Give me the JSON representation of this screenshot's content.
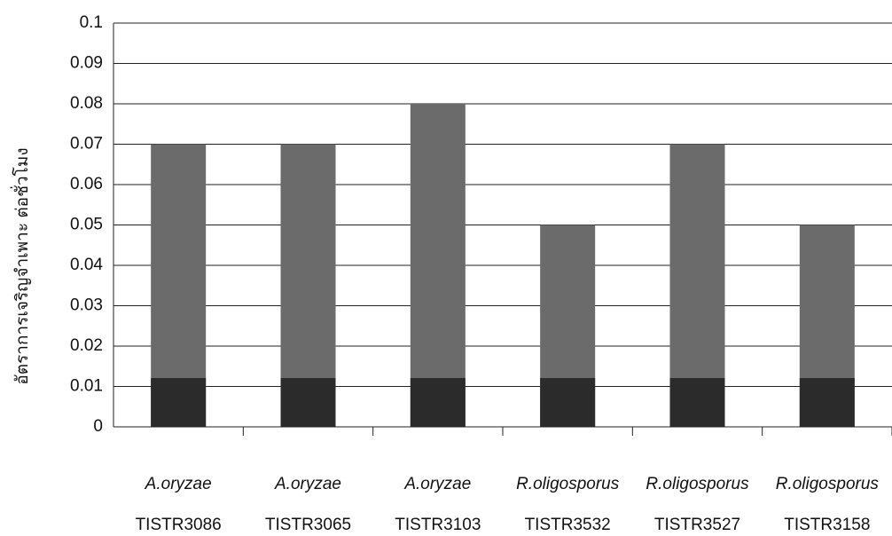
{
  "chart_data": {
    "type": "bar",
    "y_label": "อัตราการเจริญจำเพาะ   ต่อชั่วโมง",
    "categories": [
      [
        "A.oryzae",
        "TISTR3086"
      ],
      [
        "A.oryzae",
        "TISTR3065"
      ],
      [
        "A.oryzae",
        "TISTR3103"
      ],
      [
        "R.oligosporus",
        "TISTR3532"
      ],
      [
        "R.oligosporus",
        "TISTR3527"
      ],
      [
        "R.oligosporus",
        "TISTR3158"
      ]
    ],
    "values": [
      0.07,
      0.07,
      0.08,
      0.05,
      0.07,
      0.05
    ],
    "color": "#6b6b6b",
    "ylim": [
      0,
      0.1
    ],
    "yticks": [
      0,
      0.01,
      0.02,
      0.03,
      0.04,
      0.05,
      0.06,
      0.07,
      0.08,
      0.09,
      0.1
    ],
    "grid": true
  }
}
